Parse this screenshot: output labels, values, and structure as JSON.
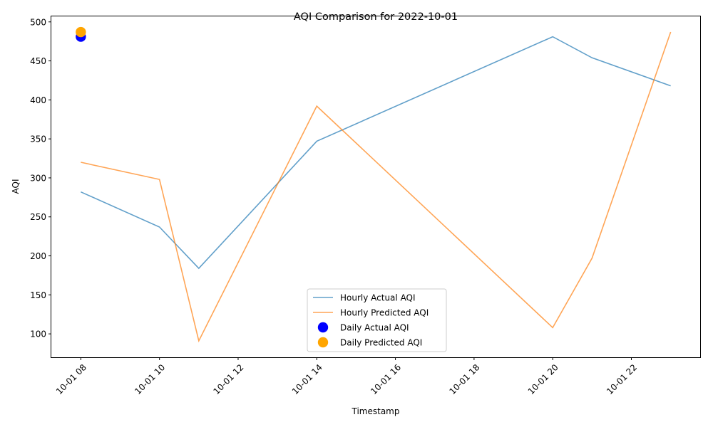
{
  "chart_data": {
    "type": "line",
    "title": "AQI Comparison for 2022-10-01",
    "xlabel": "Timestamp",
    "ylabel": "AQI",
    "xlim": [
      "2022-10-01 07:15",
      "2022-10-01 23:45"
    ],
    "ylim": [
      70,
      508
    ],
    "x_ticks": [
      "10-01 08",
      "10-01 10",
      "10-01 12",
      "10-01 14",
      "10-01 16",
      "10-01 18",
      "10-01 20",
      "10-01 22"
    ],
    "x_tick_hours": [
      8,
      10,
      12,
      14,
      16,
      18,
      20,
      22
    ],
    "y_ticks": [
      100,
      150,
      200,
      250,
      300,
      350,
      400,
      450,
      500
    ],
    "grid": false,
    "legend_position": "bottom-center",
    "series": [
      {
        "name": "Hourly Actual AQI",
        "kind": "line",
        "color": "#1f77b4",
        "x": [
          "2022-10-01 08:00",
          "2022-10-01 10:00",
          "2022-10-01 11:00",
          "2022-10-01 14:00",
          "2022-10-01 20:00",
          "2022-10-01 21:00",
          "2022-10-01 23:00"
        ],
        "values": [
          282,
          237,
          184,
          347,
          481,
          454,
          418
        ]
      },
      {
        "name": "Hourly Predicted AQI",
        "kind": "line",
        "color": "#ff7f0e",
        "x": [
          "2022-10-01 08:00",
          "2022-10-01 10:00",
          "2022-10-01 11:00",
          "2022-10-01 14:00",
          "2022-10-01 20:00",
          "2022-10-01 21:00",
          "2022-10-01 23:00"
        ],
        "values": [
          320,
          298,
          91,
          392,
          108,
          197,
          487
        ]
      },
      {
        "name": "Daily Actual AQI",
        "kind": "scatter",
        "color": "#0000ff",
        "x": [
          "2022-10-01 08:00"
        ],
        "values": [
          481
        ]
      },
      {
        "name": "Daily Predicted AQI",
        "kind": "scatter",
        "color": "#ffa500",
        "x": [
          "2022-10-01 08:00"
        ],
        "values": [
          487
        ]
      }
    ]
  }
}
